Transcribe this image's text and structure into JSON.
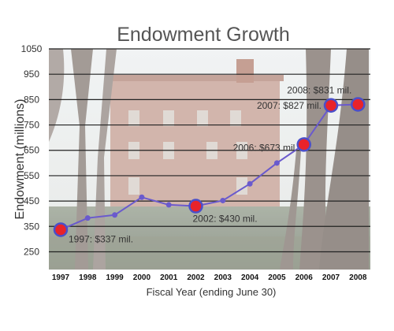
{
  "chart_data": {
    "type": "line",
    "title": "Endowment Growth",
    "xlabel": "Fiscal Year (ending June 30)",
    "ylabel": "Endowment (millions)",
    "y_ticks": [
      "250",
      "350",
      "450",
      "550",
      "650",
      "750",
      "850",
      "950",
      "1050"
    ],
    "ylim": [
      180,
      1050
    ],
    "x": [
      "1997",
      "1998",
      "1999",
      "2000",
      "2001",
      "2002",
      "2003",
      "2004",
      "2005",
      "2006",
      "2007",
      "2008"
    ],
    "values": [
      337,
      383,
      395,
      465,
      435,
      430,
      452,
      518,
      600,
      673,
      827,
      831
    ],
    "highlighted": [
      "1997",
      "2002",
      "2006",
      "2007",
      "2008"
    ],
    "annotations": [
      {
        "x": "1997",
        "text": "1997: $337 mil."
      },
      {
        "x": "2002",
        "text": "2002: $430 mil."
      },
      {
        "x": "2006",
        "text": "2006: $673 mil."
      },
      {
        "x": "2007",
        "text": "2007: $827 mil."
      },
      {
        "x": "2008",
        "text": "2008: $831 mil."
      }
    ],
    "grid": true,
    "colors": {
      "line": "#6a5acd",
      "marker": "#e8232a",
      "marker_ring": "#4b4fc9",
      "grid": "#222222"
    }
  }
}
